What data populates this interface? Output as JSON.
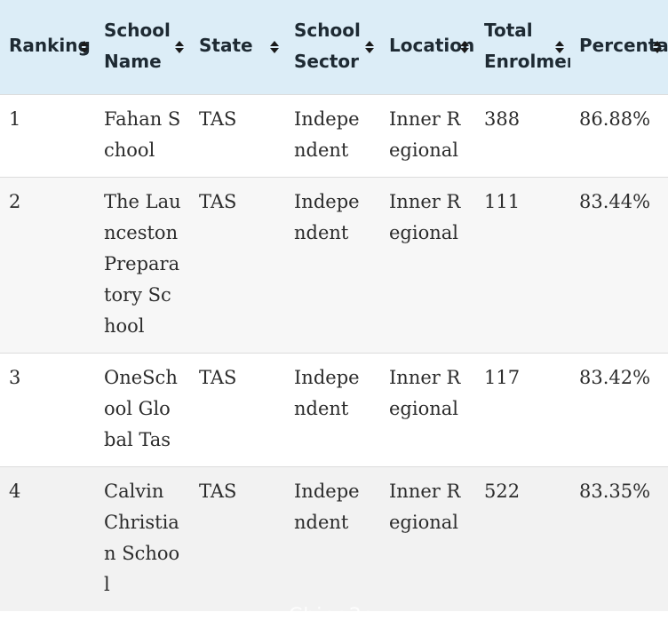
{
  "table": {
    "headers": [
      {
        "key": "ranking",
        "label": "Ranking"
      },
      {
        "key": "school_name",
        "label": "School Name"
      },
      {
        "key": "state",
        "label": "State"
      },
      {
        "key": "school_sector",
        "label": "School Sector"
      },
      {
        "key": "location",
        "label": "Location"
      },
      {
        "key": "total_enrolment",
        "label": "Total Enrolment"
      },
      {
        "key": "percentage",
        "label": "Percentage"
      }
    ],
    "rows": [
      {
        "ranking": "1",
        "school_name": "Fahan School",
        "state": "TAS",
        "school_sector": "Independent",
        "location": "Inner Regional",
        "total_enrolment": "388",
        "percentage": "86.88%"
      },
      {
        "ranking": "2",
        "school_name": "The Launceston Preparatory School",
        "state": "TAS",
        "school_sector": "Independent",
        "location": "Inner Regional",
        "total_enrolment": "111",
        "percentage": "83.44%"
      },
      {
        "ranking": "3",
        "school_name": "OneSchool Global Tas",
        "state": "TAS",
        "school_sector": "Independent",
        "location": "Inner Regional",
        "total_enrolment": "117",
        "percentage": "83.42%"
      },
      {
        "ranking": "4",
        "school_name": "Calvin Christian School",
        "state": "TAS",
        "school_sector": "Independent",
        "location": "Inner Regional",
        "total_enrolment": "522",
        "percentage": "83.35%"
      }
    ]
  },
  "watermark": "Chinа2au",
  "colors": {
    "header_bg": "#dcedf7",
    "row_alt_bg": "#f7f7f7",
    "text": "#2b2b2b"
  },
  "icons": {
    "sort": "sort-up-down-icon"
  }
}
